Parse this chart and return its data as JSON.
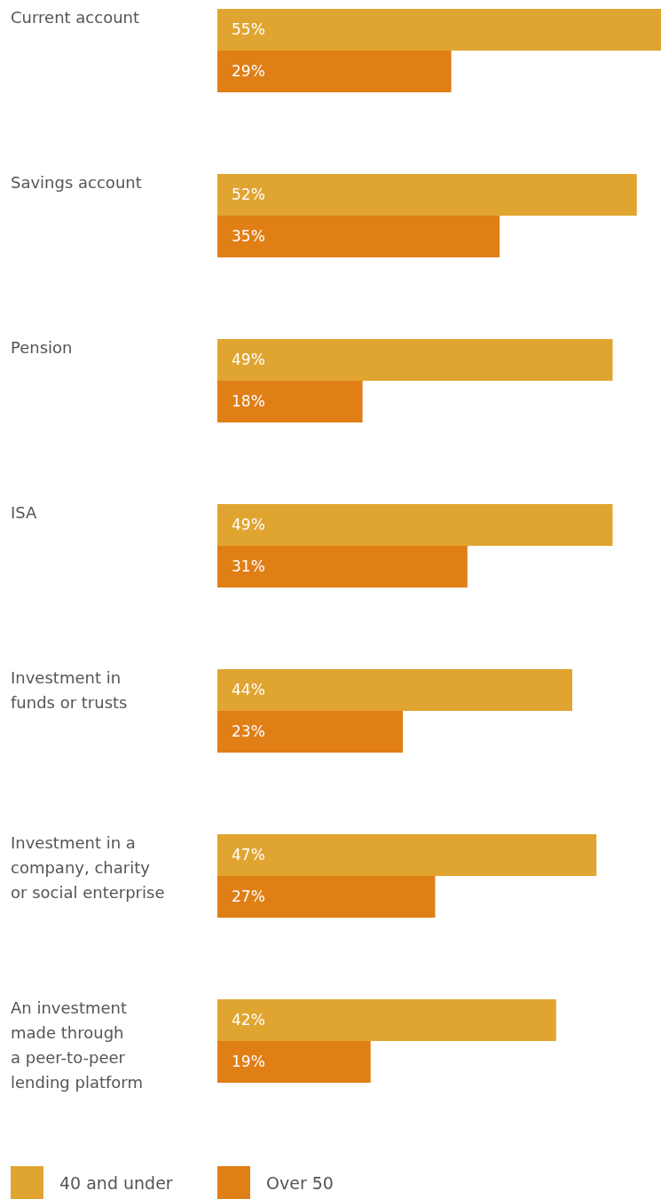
{
  "chart_data": {
    "type": "bar",
    "orientation": "horizontal",
    "legend": "bottom",
    "categories": [
      "Current account",
      "Savings account",
      "Pension",
      "ISA",
      "Investment in\nfunds or trusts",
      "Investment in a\ncompany, charity\nor social enterprise",
      "An investment\nmade through\na peer-to-peer\nlending platform"
    ],
    "series": [
      {
        "name": "40 and under",
        "color": "#e0a530",
        "values": [
          55,
          52,
          49,
          49,
          44,
          47,
          42
        ],
        "value_labels": [
          "55%",
          "52%",
          "49%",
          "49%",
          "44%",
          "47%",
          "42%"
        ]
      },
      {
        "name": "Over 50",
        "color": "#e07f16",
        "values": [
          29,
          35,
          18,
          31,
          23,
          27,
          19
        ],
        "value_labels": [
          "29%",
          "35%",
          "18%",
          "31%",
          "23%",
          "27%",
          "19%"
        ]
      }
    ]
  }
}
